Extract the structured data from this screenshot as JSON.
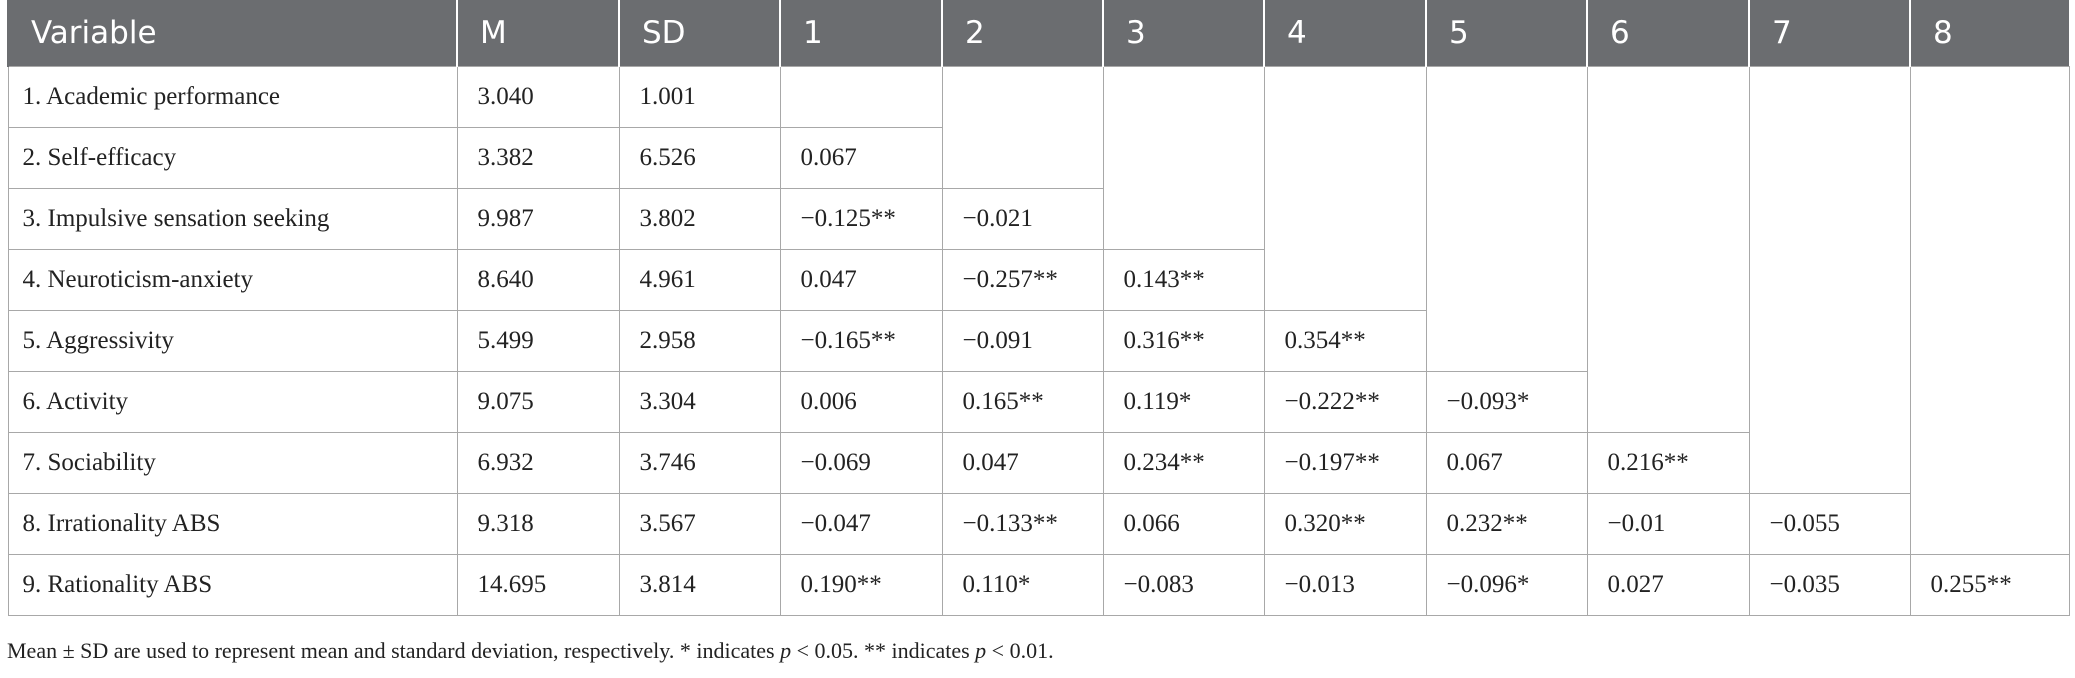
{
  "table": {
    "header": [
      "Variable",
      "M",
      "SD",
      "1",
      "2",
      "3",
      "4",
      "5",
      "6",
      "7",
      "8"
    ],
    "rows": [
      [
        "1. Academic performance",
        "3.040",
        "1.001"
      ],
      [
        "2. Self-efficacy",
        "3.382",
        "6.526",
        "0.067"
      ],
      [
        "3. Impulsive sensation seeking",
        "9.987",
        "3.802",
        "−0.125**",
        "−0.021"
      ],
      [
        "4. Neuroticism-anxiety",
        "8.640",
        "4.961",
        "0.047",
        "−0.257**",
        "0.143**"
      ],
      [
        "5. Aggressivity",
        "5.499",
        "2.958",
        "−0.165**",
        "−0.091",
        "0.316**",
        "0.354**"
      ],
      [
        "6. Activity",
        "9.075",
        "3.304",
        "0.006",
        "0.165**",
        "0.119*",
        "−0.222**",
        "−0.093*"
      ],
      [
        "7. Sociability",
        "6.932",
        "3.746",
        "−0.069",
        "0.047",
        "0.234**",
        "−0.197**",
        "0.067",
        "0.216**"
      ],
      [
        "8. Irrationality ABS",
        "9.318",
        "3.567",
        "−0.047",
        "−0.133**",
        "0.066",
        "0.320**",
        "0.232**",
        "−0.01",
        "−0.055"
      ],
      [
        "9. Rationality ABS",
        "14.695",
        "3.814",
        "0.190**",
        "0.110*",
        "−0.083",
        "−0.013",
        "−0.096*",
        "0.027",
        "−0.035",
        "0.255**"
      ]
    ]
  },
  "footnote": [
    "Mean ± SD are used to represent mean and standard deviation, respectively. * indicates ",
    "p",
    " < 0.05. ** indicates ",
    "p",
    " < 0.01."
  ]
}
